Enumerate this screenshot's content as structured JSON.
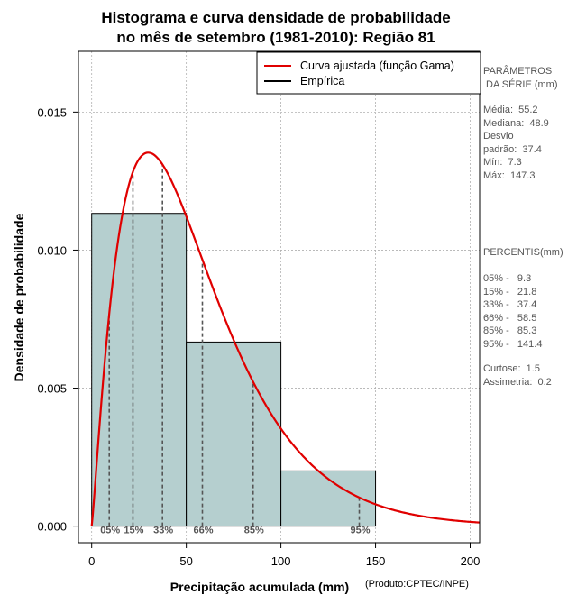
{
  "chart_data": {
    "type": "histogram",
    "title_lines": [
      "Histograma e curva densidade de probabilidade",
      "no mês de setembro (1981-2010): Região 81"
    ],
    "xlabel": "Precipitação acumulada (mm)",
    "ylabel": "Densidade de probabilidade",
    "credit": "(Produto:CPTEC/INPE)",
    "xlim": [
      -7,
      205
    ],
    "ylim": [
      -0.0006,
      0.0172
    ],
    "x_ticks": [
      0,
      50,
      100,
      150,
      200
    ],
    "y_ticks": [
      0.0,
      0.005,
      0.01,
      0.015
    ],
    "y_tick_labels": [
      "0.000",
      "0.005",
      "0.010",
      "0.015"
    ],
    "grid": true,
    "legend_position": "top-right",
    "bins": [
      {
        "start": 0,
        "end": 50,
        "density": 0.01133
      },
      {
        "start": 50,
        "end": 100,
        "density": 0.00667
      },
      {
        "start": 100,
        "end": 150,
        "density": 0.002
      }
    ],
    "series": [
      {
        "name": "Curva ajustada (função Gama)",
        "type": "line",
        "color": "#e00000",
        "distribution": "gamma",
        "mean": 55.2,
        "sd": 37.4
      },
      {
        "name": "Empírica",
        "type": "step",
        "color": "#000000"
      }
    ],
    "percentile_markers": [
      {
        "label": "05%",
        "x": 9.3
      },
      {
        "label": "15%",
        "x": 21.8
      },
      {
        "label": "33%",
        "x": 37.4
      },
      {
        "label": "66%",
        "x": 58.5
      },
      {
        "label": "85%",
        "x": 85.3
      },
      {
        "label": "95%",
        "x": 141.4
      }
    ]
  },
  "colors": {
    "bar_fill": "#b5cfcf",
    "curve": "#e00000",
    "grid": "#b0b0b0",
    "marker": "#555555"
  },
  "side_panel": {
    "params_heading": [
      "PARÂMETROS",
      " DA SÉRIE (mm)"
    ],
    "params": [
      "Média:  55.2",
      "Mediana:  48.9",
      "Desvio",
      "padrão:  37.4",
      "Mín:  7.3",
      "Máx:  147.3"
    ],
    "percentis_heading": "PERCENTIS(mm)",
    "percentis": [
      "05% -   9.3",
      "15% -   21.8",
      "33% -   37.4",
      "66% -   58.5",
      "85% -   85.3",
      "95% -   141.4"
    ],
    "stats": [
      "Curtose:  1.5",
      "Assimetria:  0.2"
    ]
  }
}
